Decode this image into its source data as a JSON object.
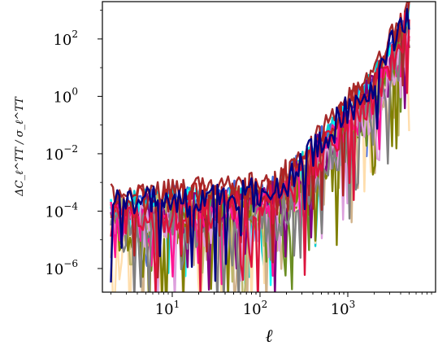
{
  "chart_data": {
    "type": "line",
    "x_scale": "log",
    "y_scale": "log",
    "xlim": [
      1.6,
      10000
    ],
    "ylim": [
      1.5e-07,
      2000
    ],
    "xlabel": "ℓ",
    "ylabel": "ΔC_ℓ^TT / σ_ℓ^TT",
    "x_ticks": [
      {
        "value": 10,
        "label": "10",
        "exp": "1"
      },
      {
        "value": 100,
        "label": "10",
        "exp": "2"
      },
      {
        "value": 1000,
        "label": "10",
        "exp": "3"
      }
    ],
    "y_ticks": [
      {
        "value": 1e-06,
        "label": "10",
        "exp": "−6"
      },
      {
        "value": 0.0001,
        "label": "10",
        "exp": "−4"
      },
      {
        "value": 0.01,
        "label": "10",
        "exp": "−2"
      },
      {
        "value": 1,
        "label": "10",
        "exp": "0"
      },
      {
        "value": 100,
        "label": "10",
        "exp": "2"
      }
    ],
    "grid": false,
    "legend": "none",
    "series": [
      {
        "color": "#4169e1",
        "seed": 3,
        "base": 0.00013,
        "jag": 0.55,
        "dips": 4
      },
      {
        "color": "#00ced1",
        "seed": 7,
        "base": 0.0001,
        "jag": 0.6,
        "dips": 5
      },
      {
        "color": "#00ffff",
        "seed": 11,
        "base": 6e-05,
        "jag": 0.7,
        "dips": 6
      },
      {
        "color": "#ffdead",
        "seed": 13,
        "base": 3e-05,
        "jag": 0.9,
        "dips": 9
      },
      {
        "color": "#d2b48c",
        "seed": 17,
        "base": 2.5e-05,
        "jag": 0.9,
        "dips": 9
      },
      {
        "color": "#bdb76b",
        "seed": 19,
        "base": 4e-05,
        "jag": 0.8,
        "dips": 8
      },
      {
        "color": "#6b8e23",
        "seed": 23,
        "base": 3e-05,
        "jag": 0.8,
        "dips": 7
      },
      {
        "color": "#808000",
        "seed": 29,
        "base": 2e-05,
        "jag": 0.8,
        "dips": 7
      },
      {
        "color": "#800080",
        "seed": 31,
        "base": 5e-05,
        "jag": 0.8,
        "dips": 6
      },
      {
        "color": "#dda0dd",
        "seed": 37,
        "base": 2e-05,
        "jag": 0.9,
        "dips": 9
      },
      {
        "color": "#ff1493",
        "seed": 41,
        "base": 3e-05,
        "jag": 0.8,
        "dips": 8
      },
      {
        "color": "#808080",
        "seed": 43,
        "base": 1.5e-05,
        "jag": 0.8,
        "dips": 8
      },
      {
        "color": "#a52a2a",
        "seed": 47,
        "base": 0.0003,
        "jag": 0.4,
        "dips": 3
      },
      {
        "color": "#b22222",
        "seed": 53,
        "base": 0.00015,
        "jag": 0.5,
        "dips": 4
      },
      {
        "color": "#dc143c",
        "seed": 59,
        "base": 5e-05,
        "jag": 0.7,
        "dips": 8
      },
      {
        "color": "#000080",
        "seed": 61,
        "base": 0.00012,
        "jag": 0.6,
        "dips": 6
      }
    ]
  }
}
